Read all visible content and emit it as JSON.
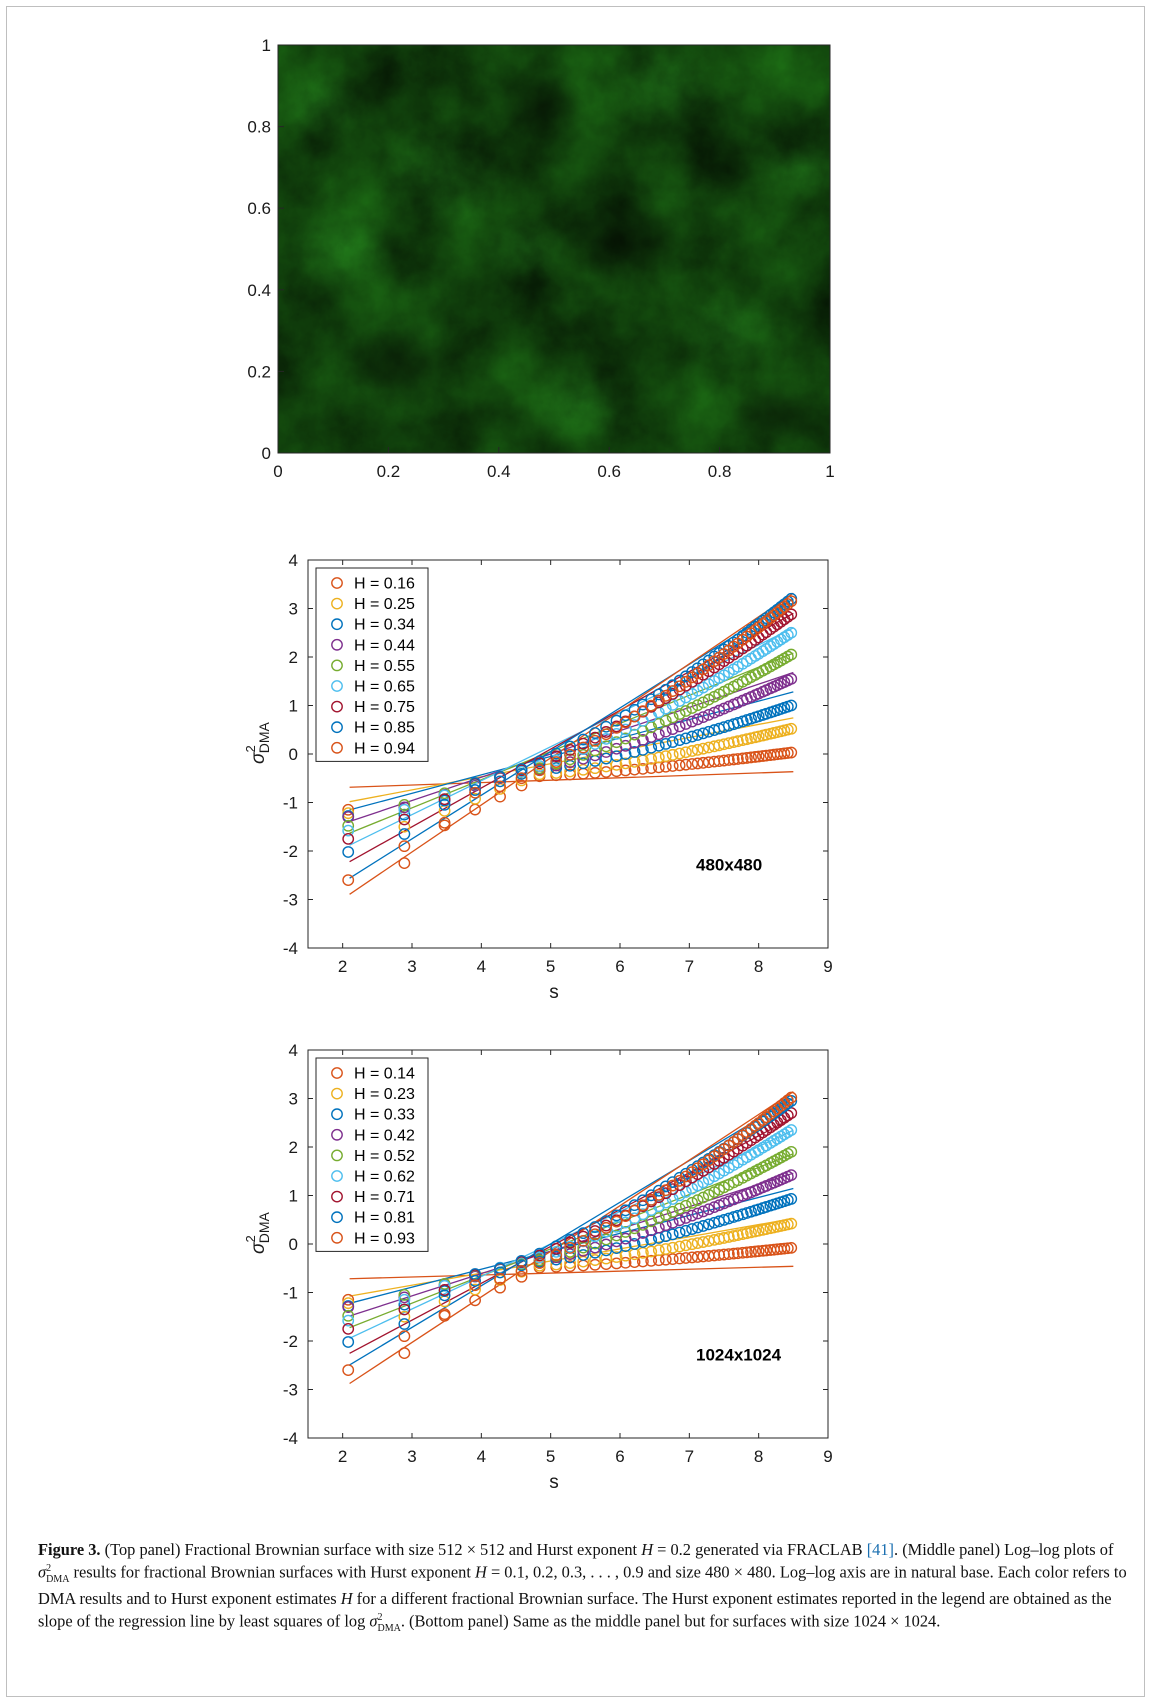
{
  "chart_data": [
    {
      "type": "heatmap",
      "title": "",
      "xlabel": "",
      "ylabel": "",
      "xlim": [
        0,
        1
      ],
      "ylim": [
        0,
        1
      ],
      "x_ticks": [
        "0",
        "0.2",
        "0.4",
        "0.6",
        "0.8",
        "1"
      ],
      "y_ticks": [
        "0",
        "0.2",
        "0.4",
        "0.6",
        "0.8",
        "1"
      ],
      "colormap": [
        "#0b1f08",
        "#33b52a"
      ],
      "bright_regions": [
        {
          "x": 0.3,
          "y": 0.68,
          "r": 0.12
        },
        {
          "x": 0.12,
          "y": 0.5,
          "r": 0.1
        },
        {
          "x": 0.55,
          "y": 0.12,
          "r": 0.1
        },
        {
          "x": 0.82,
          "y": 0.3,
          "r": 0.09
        },
        {
          "x": 0.45,
          "y": 0.5,
          "r": 0.08
        },
        {
          "x": 0.7,
          "y": 0.9,
          "r": 0.1
        },
        {
          "x": 0.95,
          "y": 0.7,
          "r": 0.08
        },
        {
          "x": 0.08,
          "y": 0.85,
          "r": 0.08
        }
      ],
      "dark_regions": [
        {
          "x": 0.62,
          "y": 0.52,
          "r": 0.1
        },
        {
          "x": 0.22,
          "y": 0.22,
          "r": 0.1
        },
        {
          "x": 0.9,
          "y": 0.1,
          "r": 0.08
        },
        {
          "x": 0.48,
          "y": 0.85,
          "r": 0.08
        }
      ]
    },
    {
      "type": "scatter",
      "xlabel": "s",
      "ylabel_main": "σ",
      "ylabel_sup": "2",
      "ylabel_sub": "DMA",
      "annotation": "480x480",
      "xlim": [
        1.5,
        9
      ],
      "ylim": [
        -4,
        4
      ],
      "x_ticks": [
        2,
        3,
        4,
        5,
        6,
        7,
        8,
        9
      ],
      "y_ticks": [
        -4,
        -3,
        -2,
        -1,
        0,
        1,
        2,
        3,
        4
      ],
      "legend_position": "top-left",
      "x": [
        2.08,
        2.89,
        3.47,
        3.91,
        4.27,
        4.58,
        4.84,
        5.08,
        5.28,
        5.47,
        5.64,
        5.8,
        5.95,
        6.08,
        6.21,
        6.33,
        6.45,
        6.56,
        6.66,
        6.76,
        6.86,
        6.95,
        7.04,
        7.12,
        7.2,
        7.28,
        7.36,
        7.43,
        7.5,
        7.57,
        7.64,
        7.7,
        7.77,
        7.83,
        7.89,
        7.95,
        8.0,
        8.06,
        8.11,
        8.17,
        8.22,
        8.27,
        8.32,
        8.37,
        8.42,
        8.47
      ],
      "series": [
        {
          "name": "H = 0.16",
          "color": "#d95319",
          "y0": -1.9,
          "x_knee": 4.85,
          "y_knee": -0.45,
          "y_end": 0.03,
          "fit": [
            0.05,
            -0.79
          ]
        },
        {
          "name": "H = 0.25",
          "color": "#edb120",
          "y0": -1.5,
          "x_knee": 4.8,
          "y_knee": -0.42,
          "y_end": 0.52,
          "fit": [
            0.27,
            -1.55
          ]
        },
        {
          "name": "H = 0.34",
          "color": "#0072bd",
          "y0": -1.25,
          "x_knee": 4.7,
          "y_knee": -0.35,
          "y_end": 1.0,
          "fit": [
            0.38,
            -1.95
          ]
        },
        {
          "name": "H = 0.44",
          "color": "#7e2f8e",
          "y0": -1.1,
          "x_knee": 4.6,
          "y_knee": -0.35,
          "y_end": 1.55,
          "fit": [
            0.48,
            -2.4
          ]
        },
        {
          "name": "H = 0.55",
          "color": "#77ac30",
          "y0": -1.05,
          "x_knee": 4.5,
          "y_knee": -0.38,
          "y_end": 2.05,
          "fit": [
            0.58,
            -2.85
          ]
        },
        {
          "name": "H = 0.65",
          "color": "#4dbeee",
          "y0": -1.15,
          "x_knee": 4.2,
          "y_knee": -0.48,
          "y_end": 2.5,
          "fit": [
            0.7,
            -3.35
          ]
        },
        {
          "name": "H = 0.75",
          "color": "#a2142f",
          "y0": -1.35,
          "x_knee": 4.0,
          "y_knee": -0.55,
          "y_end": 2.88,
          "fit": [
            0.8,
            -3.9
          ]
        },
        {
          "name": "H = 0.85",
          "color": "#0072bd",
          "y0": -1.65,
          "x_knee": 3.9,
          "y_knee": -0.6,
          "y_end": 3.2,
          "fit": [
            0.9,
            -4.45
          ]
        },
        {
          "name": "H = 0.94",
          "color": "#d95319",
          "y0": -2.25,
          "x_knee": 3.9,
          "y_knee": -0.8,
          "y_end": 3.15,
          "fit": [
            0.97,
            -4.93
          ]
        }
      ],
      "marker_points_note": "",
      "first_points": [
        {
          "y": -1.15
        },
        {
          "y": -1.22
        },
        {
          "y": -1.28
        },
        {
          "y": -1.3
        },
        {
          "y": -1.48
        },
        {
          "y": -1.58
        },
        {
          "y": -1.75
        },
        {
          "y": -2.02
        },
        {
          "y": -2.6
        }
      ]
    },
    {
      "type": "scatter",
      "xlabel": "s",
      "ylabel_main": "σ",
      "ylabel_sup": "2",
      "ylabel_sub": "DMA",
      "annotation": "1024x1024",
      "xlim": [
        1.5,
        9
      ],
      "ylim": [
        -4,
        4
      ],
      "x_ticks": [
        2,
        3,
        4,
        5,
        6,
        7,
        8,
        9
      ],
      "y_ticks": [
        -4,
        -3,
        -2,
        -1,
        0,
        1,
        2,
        3,
        4
      ],
      "legend_position": "top-left",
      "x": [
        2.08,
        2.89,
        3.47,
        3.91,
        4.27,
        4.58,
        4.84,
        5.08,
        5.28,
        5.47,
        5.64,
        5.8,
        5.95,
        6.08,
        6.21,
        6.33,
        6.45,
        6.56,
        6.66,
        6.76,
        6.86,
        6.95,
        7.04,
        7.12,
        7.2,
        7.28,
        7.36,
        7.43,
        7.5,
        7.57,
        7.64,
        7.7,
        7.77,
        7.83,
        7.89,
        7.95,
        8.0,
        8.06,
        8.11,
        8.17,
        8.22,
        8.27,
        8.32,
        8.37,
        8.42,
        8.47
      ],
      "series": [
        {
          "name": "H = 0.14",
          "color": "#d95319",
          "y0": -1.9,
          "x_knee": 4.85,
          "y_knee": -0.48,
          "y_end": -0.08,
          "fit": [
            0.04,
            -0.8
          ]
        },
        {
          "name": "H = 0.23",
          "color": "#edb120",
          "y0": -1.5,
          "x_knee": 4.8,
          "y_knee": -0.45,
          "y_end": 0.42,
          "fit": [
            0.25,
            -1.6
          ]
        },
        {
          "name": "H = 0.33",
          "color": "#0072bd",
          "y0": -1.25,
          "x_knee": 4.7,
          "y_knee": -0.38,
          "y_end": 0.93,
          "fit": [
            0.37,
            -2.0
          ]
        },
        {
          "name": "H = 0.42",
          "color": "#7e2f8e",
          "y0": -1.1,
          "x_knee": 4.6,
          "y_knee": -0.38,
          "y_end": 1.42,
          "fit": [
            0.46,
            -2.45
          ]
        },
        {
          "name": "H = 0.52",
          "color": "#77ac30",
          "y0": -1.05,
          "x_knee": 4.5,
          "y_knee": -0.42,
          "y_end": 1.9,
          "fit": [
            0.56,
            -2.9
          ]
        },
        {
          "name": "H = 0.62",
          "color": "#4dbeee",
          "y0": -1.15,
          "x_knee": 4.2,
          "y_knee": -0.5,
          "y_end": 2.35,
          "fit": [
            0.67,
            -3.35
          ]
        },
        {
          "name": "H = 0.71",
          "color": "#a2142f",
          "y0": -1.35,
          "x_knee": 4.0,
          "y_knee": -0.58,
          "y_end": 2.7,
          "fit": [
            0.76,
            -3.85
          ]
        },
        {
          "name": "H = 0.81",
          "color": "#0072bd",
          "y0": -1.65,
          "x_knee": 3.9,
          "y_knee": -0.62,
          "y_end": 2.95,
          "fit": [
            0.86,
            -4.3
          ]
        },
        {
          "name": "H = 0.93",
          "color": "#d95319",
          "y0": -2.25,
          "x_knee": 3.9,
          "y_knee": -0.85,
          "y_end": 3.02,
          "fit": [
            0.94,
            -4.85
          ]
        }
      ],
      "first_points": [
        {
          "y": -1.15
        },
        {
          "y": -1.22
        },
        {
          "y": -1.28
        },
        {
          "y": -1.3
        },
        {
          "y": -1.48
        },
        {
          "y": -1.58
        },
        {
          "y": -1.75
        },
        {
          "y": -2.02
        },
        {
          "y": -2.6
        }
      ]
    }
  ],
  "caption": {
    "label": "Figure 3.",
    "parts": [
      "(Top panel) Fractional Brownian surface with size 512 × 512 and Hurst exponent ",
      "H",
      " = 0.2 generated via FRACLAB ",
      "[41]",
      ". (Middle panel) Log–log plots of ",
      "σ",
      "2",
      "DMA",
      " results for fractional Brownian surfaces with Hurst exponent ",
      "H",
      " = 0.1, 0.2, 0.3, . . . , 0.9 and size 480 × 480. Log–log axis are in natural base. Each color refers to DMA results and to Hurst exponent estimates ",
      "H",
      " for a different fractional Brownian surface. The Hurst exponent estimates reported in the legend are obtained as the slope of the regression line by least squares of log ",
      "σ",
      "2",
      "DMA",
      ". (Bottom panel) Same as the middle panel but for surfaces with size 1024 × 1024."
    ]
  }
}
